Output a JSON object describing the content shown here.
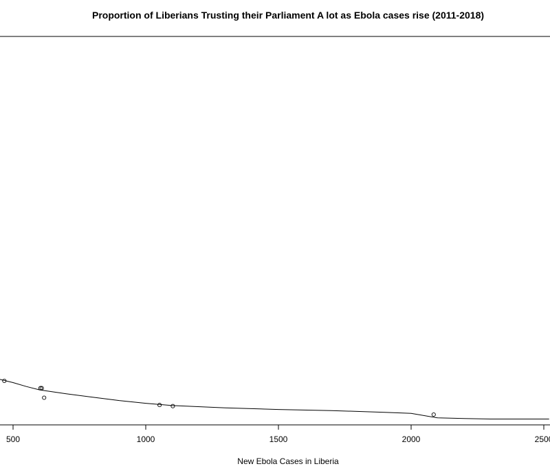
{
  "chart_data": {
    "type": "scatter",
    "title": "Proportion of Liberians Trusting their Parliament A lot as Ebola cases rise (2011-2018)",
    "xlabel": "New Ebola Cases in Liberia",
    "ylabel": "",
    "x_ticks": [
      500,
      1000,
      1500,
      2000,
      2500
    ],
    "xlim": [
      450,
      2520
    ],
    "points": [
      {
        "x": 467,
        "y": 0.13
      },
      {
        "x": 603,
        "y": 0.117
      },
      {
        "x": 608,
        "y": 0.117
      },
      {
        "x": 617,
        "y": 0.1
      },
      {
        "x": 1052,
        "y": 0.087
      },
      {
        "x": 1102,
        "y": 0.085
      },
      {
        "x": 2085,
        "y": 0.07
      }
    ],
    "fit_line": [
      {
        "x": 440,
        "y": 0.134
      },
      {
        "x": 500,
        "y": 0.127
      },
      {
        "x": 550,
        "y": 0.12
      },
      {
        "x": 600,
        "y": 0.114
      },
      {
        "x": 700,
        "y": 0.107
      },
      {
        "x": 800,
        "y": 0.101
      },
      {
        "x": 900,
        "y": 0.095
      },
      {
        "x": 1000,
        "y": 0.09
      },
      {
        "x": 1100,
        "y": 0.086
      },
      {
        "x": 1300,
        "y": 0.082
      },
      {
        "x": 1500,
        "y": 0.079
      },
      {
        "x": 1700,
        "y": 0.077
      },
      {
        "x": 1900,
        "y": 0.074
      },
      {
        "x": 2000,
        "y": 0.072
      },
      {
        "x": 2100,
        "y": 0.064
      },
      {
        "x": 2200,
        "y": 0.063
      },
      {
        "x": 2300,
        "y": 0.062
      },
      {
        "x": 2400,
        "y": 0.062
      },
      {
        "x": 2520,
        "y": 0.062
      }
    ]
  }
}
